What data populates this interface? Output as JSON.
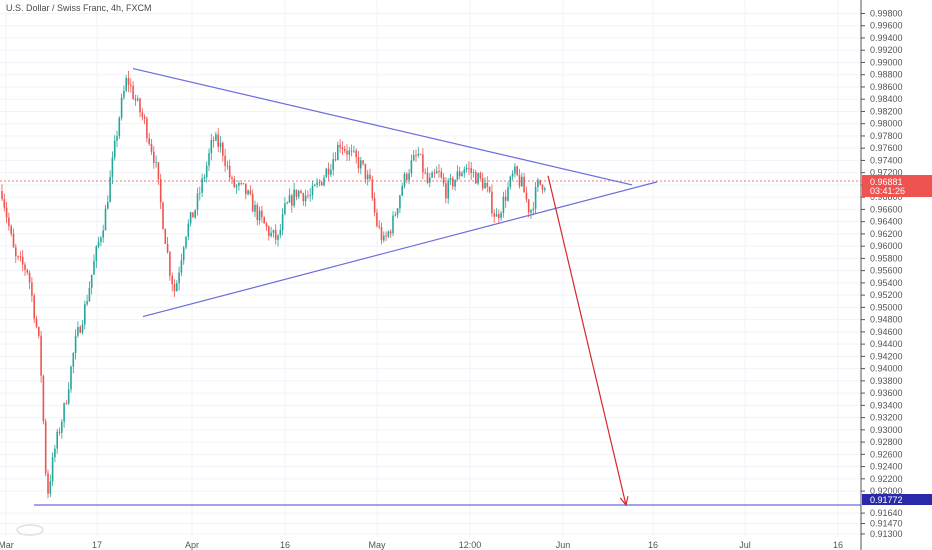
{
  "header": {
    "title": "U.S. Dollar / Swiss Franc, 4h, FXCM"
  },
  "chart_data": {
    "type": "candlestick",
    "instrument": "U.S. Dollar / Swiss Franc",
    "interval": "4h",
    "source": "FXCM",
    "x_ticks": [
      "Mar",
      "17",
      "Apr",
      "16",
      "May",
      "12:00",
      "Jun",
      "16",
      "Jul",
      "16"
    ],
    "y_ticks": [
      "0.99800",
      "0.99600",
      "0.99400",
      "0.99200",
      "0.99000",
      "0.98800",
      "0.98600",
      "0.98400",
      "0.98200",
      "0.98000",
      "0.97800",
      "0.97600",
      "0.97400",
      "0.97200",
      "0.97000",
      "0.96800",
      "0.96600",
      "0.96400",
      "0.96200",
      "0.96000",
      "0.95800",
      "0.95600",
      "0.95400",
      "0.95200",
      "0.95000",
      "0.94800",
      "0.94600",
      "0.94400",
      "0.94200",
      "0.94000",
      "0.93800",
      "0.93600",
      "0.93400",
      "0.93200",
      "0.93000",
      "0.92800",
      "0.92600",
      "0.92400",
      "0.92200",
      "0.92000",
      "0.91640",
      "0.91470",
      "0.91300"
    ],
    "ylim": [
      0.9125,
      1.0002
    ],
    "last_price_label": "0.96881",
    "countdown_label": "03:41:26",
    "target_price_label": "0.91772",
    "price_path": [
      {
        "x": 2,
        "y": 0.969
      },
      {
        "x": 15,
        "y": 0.958
      },
      {
        "x": 28,
        "y": 0.956
      },
      {
        "x": 40,
        "y": 0.943
      },
      {
        "x": 47,
        "y": 0.919
      },
      {
        "x": 55,
        "y": 0.927
      },
      {
        "x": 65,
        "y": 0.934
      },
      {
        "x": 75,
        "y": 0.944
      },
      {
        "x": 85,
        "y": 0.95
      },
      {
        "x": 95,
        "y": 0.958
      },
      {
        "x": 105,
        "y": 0.965
      },
      {
        "x": 112,
        "y": 0.973
      },
      {
        "x": 120,
        "y": 0.982
      },
      {
        "x": 127,
        "y": 0.9875
      },
      {
        "x": 135,
        "y": 0.984
      },
      {
        "x": 145,
        "y": 0.98
      },
      {
        "x": 155,
        "y": 0.974
      },
      {
        "x": 163,
        "y": 0.964
      },
      {
        "x": 170,
        "y": 0.956
      },
      {
        "x": 175,
        "y": 0.9525
      },
      {
        "x": 185,
        "y": 0.962
      },
      {
        "x": 195,
        "y": 0.966
      },
      {
        "x": 205,
        "y": 0.972
      },
      {
        "x": 213,
        "y": 0.9775
      },
      {
        "x": 222,
        "y": 0.976
      },
      {
        "x": 232,
        "y": 0.97
      },
      {
        "x": 245,
        "y": 0.969
      },
      {
        "x": 258,
        "y": 0.965
      },
      {
        "x": 270,
        "y": 0.962
      },
      {
        "x": 278,
        "y": 0.961
      },
      {
        "x": 285,
        "y": 0.966
      },
      {
        "x": 297,
        "y": 0.969
      },
      {
        "x": 310,
        "y": 0.968
      },
      {
        "x": 322,
        "y": 0.971
      },
      {
        "x": 332,
        "y": 0.974
      },
      {
        "x": 340,
        "y": 0.977
      },
      {
        "x": 350,
        "y": 0.975
      },
      {
        "x": 362,
        "y": 0.973
      },
      {
        "x": 370,
        "y": 0.97
      },
      {
        "x": 376,
        "y": 0.964
      },
      {
        "x": 384,
        "y": 0.9605
      },
      {
        "x": 393,
        "y": 0.964
      },
      {
        "x": 402,
        "y": 0.97
      },
      {
        "x": 410,
        "y": 0.973
      },
      {
        "x": 418,
        "y": 0.975
      },
      {
        "x": 428,
        "y": 0.97
      },
      {
        "x": 438,
        "y": 0.972
      },
      {
        "x": 446,
        "y": 0.969
      },
      {
        "x": 455,
        "y": 0.971
      },
      {
        "x": 465,
        "y": 0.973
      },
      {
        "x": 475,
        "y": 0.9715
      },
      {
        "x": 485,
        "y": 0.97
      },
      {
        "x": 496,
        "y": 0.9645
      },
      {
        "x": 505,
        "y": 0.968
      },
      {
        "x": 514,
        "y": 0.972
      },
      {
        "x": 522,
        "y": 0.97
      },
      {
        "x": 530,
        "y": 0.9655
      },
      {
        "x": 538,
        "y": 0.97
      },
      {
        "x": 546,
        "y": 0.9705
      }
    ],
    "drawings": [
      {
        "name": "upper-trendline",
        "color": "#6b6bdd",
        "from": [
          133,
          0.989
        ],
        "to": [
          632,
          0.97
        ]
      },
      {
        "name": "lower-trendline",
        "color": "#6b6bdd",
        "from": [
          143,
          0.9485
        ],
        "to": [
          657,
          0.9705
        ]
      },
      {
        "name": "target-hline",
        "color": "#6b6bdd",
        "from": [
          34,
          0.91772
        ],
        "to": [
          861,
          0.91772
        ]
      },
      {
        "name": "projection-arrow",
        "color": "#d6282a",
        "from": [
          548,
          0.9715
        ],
        "to": [
          626,
          0.91772
        ]
      }
    ]
  }
}
